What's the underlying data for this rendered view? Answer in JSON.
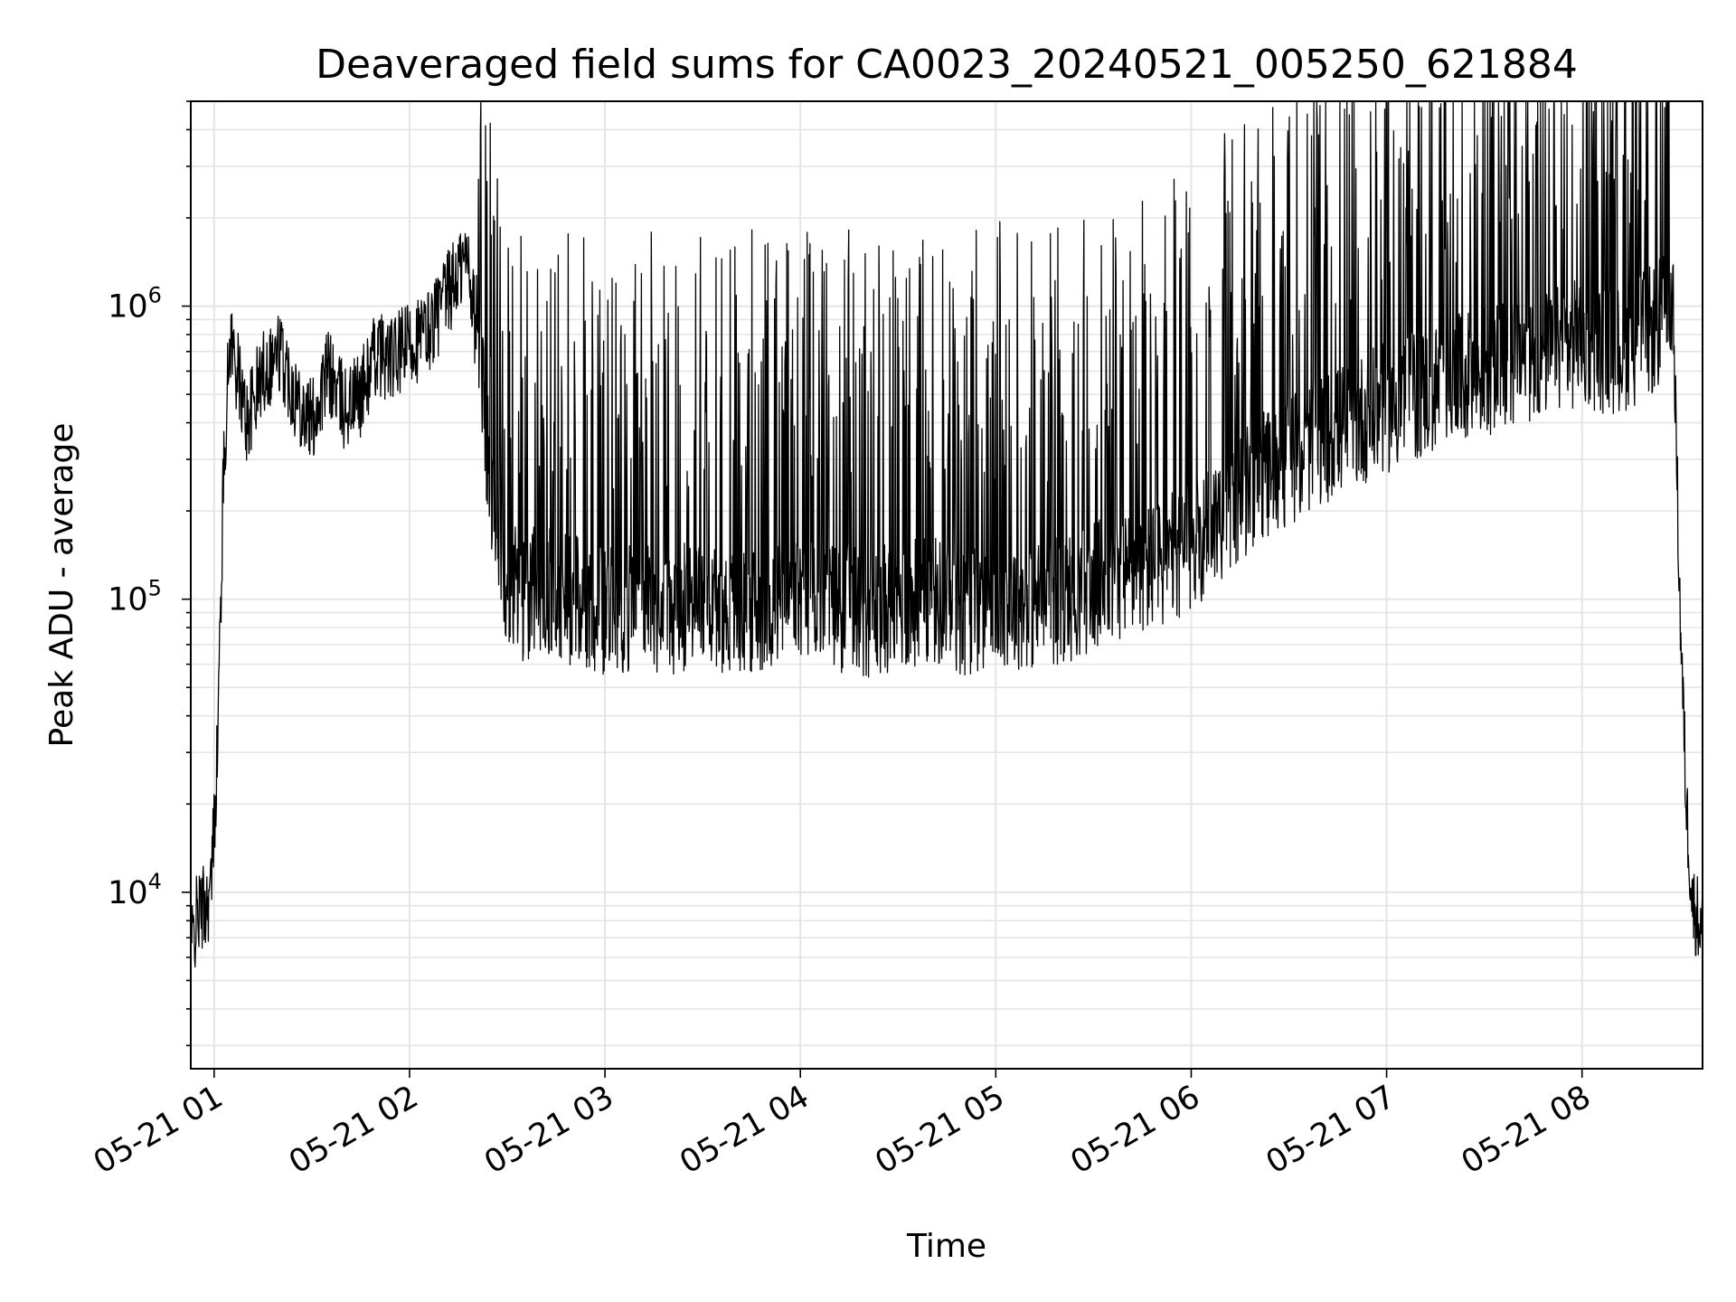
{
  "chart_data": {
    "type": "line",
    "title": "Deaveraged field sums for CA0023_20240521_005250_621884",
    "xlabel": "Time",
    "ylabel": "Peak ADU - average",
    "yscale": "log",
    "ylim": [
      2500,
      5000000
    ],
    "xlim": [
      "2024-05-21 00:52:50",
      "2024-05-21 08:37:00"
    ],
    "grid": true,
    "x_ticks": [
      "05-21 01",
      "05-21 02",
      "05-21 03",
      "05-21 04",
      "05-21 05",
      "05-21 06",
      "05-21 07",
      "05-21 08"
    ],
    "y_ticks": [
      {
        "label": "10",
        "exp": "4",
        "value": 10000
      },
      {
        "label": "10",
        "exp": "5",
        "value": 100000
      },
      {
        "label": "10",
        "exp": "6",
        "value": 1000000
      }
    ],
    "line_color": "#000000",
    "grid_color": "#e5e5e5",
    "series": [
      {
        "x": [
          "00:53",
          "00:55",
          "00:57",
          "00:59",
          "01:01",
          "01:03",
          "01:05",
          "01:10",
          "01:15",
          "01:20",
          "01:25",
          "01:30",
          "01:35",
          "01:40",
          "01:45",
          "01:50",
          "01:55",
          "02:00",
          "02:05",
          "02:10",
          "02:15",
          "02:18",
          "02:20",
          "02:22",
          "02:25",
          "02:30",
          "02:35",
          "02:40",
          "02:45",
          "02:50",
          "03:00",
          "03:10",
          "03:20",
          "03:30",
          "03:40",
          "03:50",
          "04:00",
          "04:10",
          "04:20",
          "04:30",
          "04:40",
          "04:50",
          "05:00",
          "05:10",
          "05:20",
          "05:30",
          "05:40",
          "05:50",
          "06:00",
          "06:10",
          "06:20",
          "06:30",
          "06:40",
          "06:50",
          "07:00",
          "07:10",
          "07:20",
          "07:30",
          "07:40",
          "07:50",
          "08:00",
          "08:10",
          "08:20",
          "08:25",
          "08:28",
          "08:30",
          "08:32",
          "08:34",
          "08:36",
          "08:37"
        ],
        "y": [
          6500,
          8500,
          9000,
          10000,
          30000,
          300000,
          800000,
          400000,
          600000,
          700000,
          500000,
          400000,
          600000,
          450000,
          500000,
          700000,
          650000,
          750000,
          800000,
          1000000,
          1300000,
          1500000,
          900000,
          700000,
          200000,
          120000,
          100000,
          110000,
          100000,
          100000,
          90000,
          95000,
          90000,
          100000,
          90000,
          95000,
          100000,
          95000,
          90000,
          95000,
          100000,
          90000,
          100000,
          95000,
          100000,
          110000,
          120000,
          130000,
          150000,
          200000,
          250000,
          300000,
          350000,
          400000,
          450000,
          500000,
          550000,
          600000,
          650000,
          700000,
          750000,
          700000,
          800000,
          900000,
          1000000,
          100000,
          20000,
          9000,
          8000,
          7000
        ]
      }
    ]
  }
}
